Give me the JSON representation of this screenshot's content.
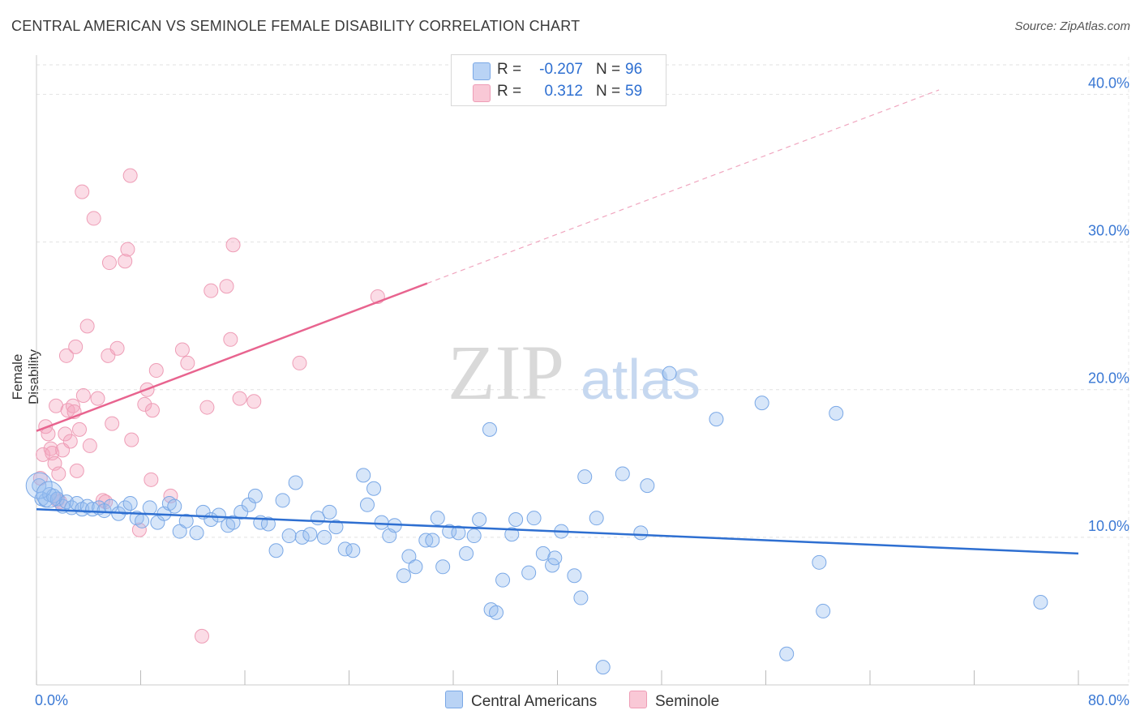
{
  "title": "CENTRAL AMERICAN VS SEMINOLE FEMALE DISABILITY CORRELATION CHART",
  "source": "Source: ZipAtlas.com",
  "watermark": {
    "zip": "ZIP",
    "atlas": "atlas"
  },
  "legend": {
    "rows": [
      {
        "r_label": "R =",
        "r_value": "-0.207",
        "n_label": "N =",
        "n_value": "96",
        "color_fill": "#b9d3f5",
        "color_stroke": "#7aa8e6"
      },
      {
        "r_label": "R =",
        "r_value": "0.312",
        "n_label": "N =",
        "n_value": "59",
        "color_fill": "#f9c8d6",
        "color_stroke": "#ee9db6"
      }
    ],
    "bottom": [
      {
        "label": "Central Americans",
        "color_fill": "#b9d3f5",
        "color_stroke": "#7aa8e6"
      },
      {
        "label": "Seminole",
        "color_fill": "#f9c8d6",
        "color_stroke": "#ee9db6"
      }
    ]
  },
  "chart_data": {
    "type": "scatter",
    "title": "CENTRAL AMERICAN VS SEMINOLE FEMALE DISABILITY CORRELATION CHART",
    "xlabel": "",
    "ylabel": "Female Disability",
    "xlim": [
      0,
      80
    ],
    "ylim": [
      0,
      42
    ],
    "x_tick_labels": [
      "0.0%",
      "80.0%"
    ],
    "y_ticks": [
      10,
      20,
      30,
      40
    ],
    "y_tick_labels": [
      "10.0%",
      "20.0%",
      "30.0%",
      "40.0%"
    ],
    "grid": true,
    "colors": {
      "blue": "#2e6fd1",
      "pink": "#e8648f",
      "axis_text": "#3a78d4"
    },
    "series": [
      {
        "name": "Central Americans",
        "color": "#2e6fd1",
        "trend": {
          "x": [
            0,
            80
          ],
          "y": [
            11.9,
            8.9
          ],
          "style": "solid"
        },
        "points": [
          [
            0.2,
            13.5
          ],
          [
            0.4,
            12.6
          ],
          [
            0.7,
            12.5
          ],
          [
            1.0,
            12.9
          ],
          [
            1.3,
            12.8
          ],
          [
            1.6,
            12.6
          ],
          [
            2.0,
            12.1
          ],
          [
            2.3,
            12.4
          ],
          [
            2.7,
            12.0
          ],
          [
            3.1,
            12.3
          ],
          [
            3.5,
            11.9
          ],
          [
            3.9,
            12.1
          ],
          [
            4.3,
            11.9
          ],
          [
            4.8,
            12.0
          ],
          [
            5.2,
            11.8
          ],
          [
            5.7,
            12.1
          ],
          [
            6.3,
            11.6
          ],
          [
            6.8,
            12.0
          ],
          [
            7.2,
            12.3
          ],
          [
            7.7,
            11.3
          ],
          [
            8.1,
            11.1
          ],
          [
            8.7,
            12.0
          ],
          [
            9.3,
            11.0
          ],
          [
            9.8,
            11.6
          ],
          [
            10.2,
            12.3
          ],
          [
            10.6,
            12.1
          ],
          [
            11.0,
            10.4
          ],
          [
            11.5,
            11.1
          ],
          [
            12.3,
            10.3
          ],
          [
            12.8,
            11.7
          ],
          [
            13.4,
            11.2
          ],
          [
            14.0,
            11.5
          ],
          [
            14.7,
            10.8
          ],
          [
            15.1,
            11.0
          ],
          [
            15.7,
            11.7
          ],
          [
            16.3,
            12.2
          ],
          [
            16.8,
            12.8
          ],
          [
            17.2,
            11.0
          ],
          [
            17.8,
            10.9
          ],
          [
            18.4,
            9.1
          ],
          [
            18.9,
            12.5
          ],
          [
            19.4,
            10.1
          ],
          [
            19.9,
            13.7
          ],
          [
            20.4,
            10.0
          ],
          [
            21.0,
            10.2
          ],
          [
            21.6,
            11.3
          ],
          [
            22.1,
            10.0
          ],
          [
            22.5,
            11.7
          ],
          [
            23.0,
            10.7
          ],
          [
            23.7,
            9.2
          ],
          [
            24.3,
            9.1
          ],
          [
            25.1,
            14.2
          ],
          [
            25.4,
            12.2
          ],
          [
            25.9,
            13.3
          ],
          [
            26.5,
            11.0
          ],
          [
            27.1,
            10.1
          ],
          [
            27.5,
            10.8
          ],
          [
            28.2,
            7.4
          ],
          [
            28.6,
            8.7
          ],
          [
            29.1,
            8.0
          ],
          [
            29.9,
            9.8
          ],
          [
            30.4,
            9.8
          ],
          [
            30.8,
            11.3
          ],
          [
            31.2,
            8.0
          ],
          [
            31.7,
            10.4
          ],
          [
            32.4,
            10.3
          ],
          [
            33.0,
            8.9
          ],
          [
            33.6,
            10.1
          ],
          [
            34.0,
            11.2
          ],
          [
            34.8,
            17.3
          ],
          [
            34.9,
            5.1
          ],
          [
            35.3,
            4.9
          ],
          [
            35.8,
            7.1
          ],
          [
            36.5,
            10.2
          ],
          [
            36.8,
            11.2
          ],
          [
            37.8,
            7.6
          ],
          [
            38.2,
            11.3
          ],
          [
            38.9,
            8.9
          ],
          [
            39.6,
            8.1
          ],
          [
            39.8,
            8.6
          ],
          [
            40.3,
            10.4
          ],
          [
            41.3,
            7.4
          ],
          [
            41.8,
            5.9
          ],
          [
            42.1,
            14.1
          ],
          [
            43.0,
            11.3
          ],
          [
            43.5,
            1.2
          ],
          [
            45.0,
            14.3
          ],
          [
            46.4,
            10.3
          ],
          [
            46.9,
            13.5
          ],
          [
            48.6,
            21.1
          ],
          [
            52.2,
            18.0
          ],
          [
            55.7,
            19.1
          ],
          [
            57.6,
            2.1
          ],
          [
            60.1,
            8.3
          ],
          [
            60.4,
            5.0
          ],
          [
            61.4,
            18.4
          ],
          [
            77.1,
            5.6
          ]
        ],
        "sizes_big": [
          [
            0.2,
            13.5
          ],
          [
            1.0,
            12.9
          ]
        ]
      },
      {
        "name": "Seminole",
        "color": "#e8648f",
        "trend": {
          "x": [
            0,
            30
          ],
          "y": [
            17.2,
            27.2
          ],
          "style": "solid",
          "extended_to": [
            69.3,
            40.3
          ]
        },
        "points": [
          [
            0.3,
            14.0
          ],
          [
            0.5,
            15.6
          ],
          [
            0.7,
            17.5
          ],
          [
            0.9,
            17.0
          ],
          [
            1.1,
            16.0
          ],
          [
            1.2,
            15.7
          ],
          [
            1.4,
            15.0
          ],
          [
            1.5,
            18.9
          ],
          [
            1.6,
            12.5
          ],
          [
            1.7,
            14.3
          ],
          [
            1.8,
            12.4
          ],
          [
            2.0,
            15.9
          ],
          [
            2.2,
            17.0
          ],
          [
            2.3,
            22.3
          ],
          [
            2.4,
            18.6
          ],
          [
            2.6,
            16.5
          ],
          [
            2.8,
            18.9
          ],
          [
            2.9,
            18.5
          ],
          [
            3.0,
            22.9
          ],
          [
            3.1,
            14.5
          ],
          [
            3.3,
            17.3
          ],
          [
            3.5,
            33.4
          ],
          [
            3.6,
            19.6
          ],
          [
            3.9,
            24.3
          ],
          [
            4.1,
            16.2
          ],
          [
            4.4,
            31.6
          ],
          [
            4.7,
            19.4
          ],
          [
            5.1,
            12.5
          ],
          [
            5.3,
            12.4
          ],
          [
            5.5,
            22.3
          ],
          [
            5.6,
            28.6
          ],
          [
            5.8,
            17.7
          ],
          [
            6.2,
            22.8
          ],
          [
            6.8,
            28.7
          ],
          [
            7.0,
            29.5
          ],
          [
            7.2,
            34.5
          ],
          [
            7.3,
            16.6
          ],
          [
            7.9,
            10.5
          ],
          [
            8.3,
            19.0
          ],
          [
            8.5,
            20.0
          ],
          [
            8.8,
            13.9
          ],
          [
            8.9,
            18.6
          ],
          [
            9.2,
            21.3
          ],
          [
            10.3,
            12.8
          ],
          [
            11.2,
            22.7
          ],
          [
            11.6,
            21.8
          ],
          [
            12.7,
            3.3
          ],
          [
            13.1,
            18.8
          ],
          [
            13.4,
            26.7
          ],
          [
            14.6,
            27.0
          ],
          [
            14.9,
            23.4
          ],
          [
            15.1,
            29.8
          ],
          [
            15.6,
            19.4
          ],
          [
            16.7,
            19.2
          ],
          [
            20.2,
            21.8
          ],
          [
            26.2,
            26.3
          ]
        ]
      }
    ]
  }
}
